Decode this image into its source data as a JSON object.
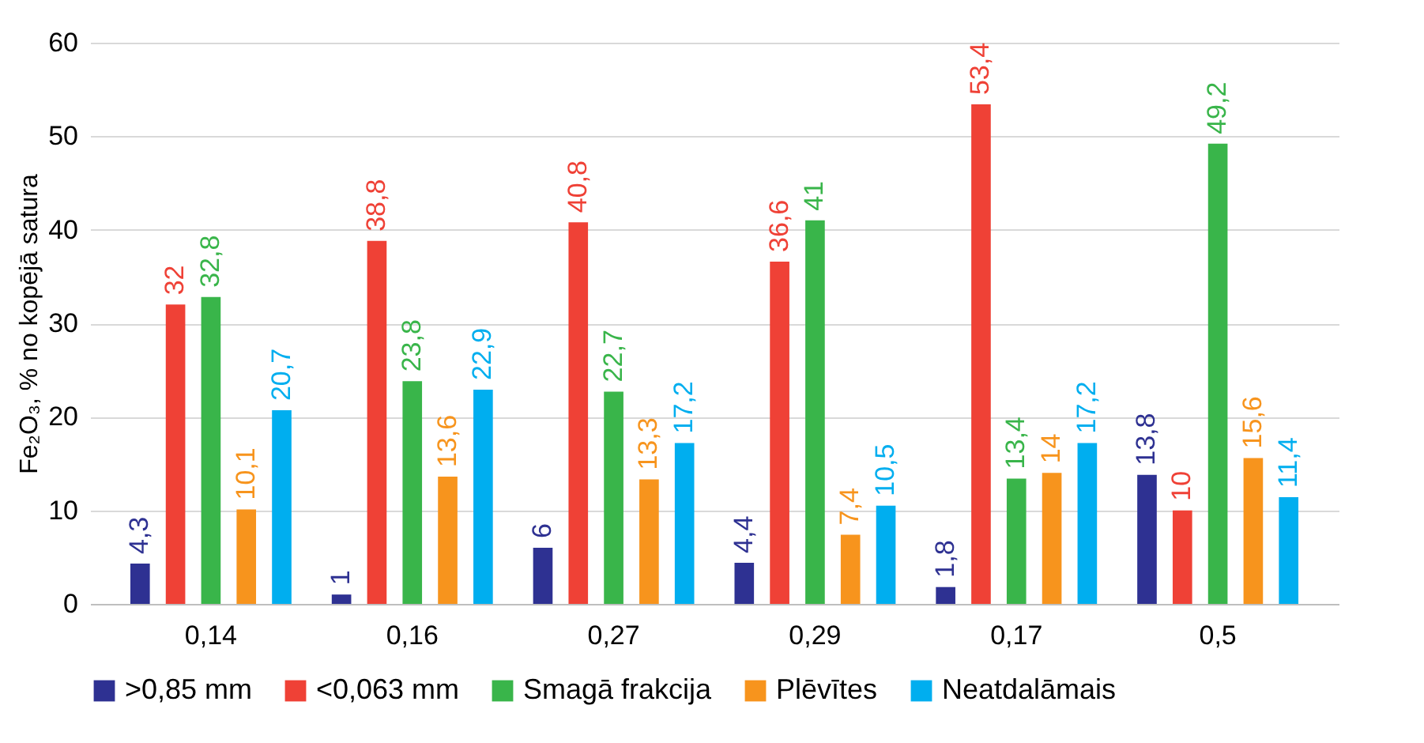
{
  "chart_data": {
    "type": "bar",
    "ylabel": "Fe₂O₃, % no kopējā satura",
    "categories": [
      "0,14",
      "0,16",
      "0,27",
      "0,29",
      "0,17",
      "0,5"
    ],
    "series": [
      {
        "name": ">0,85 mm",
        "color": "#2e3192",
        "values": [
          4.3,
          1,
          6,
          4.4,
          1.8,
          13.8
        ],
        "value_labels": [
          "4,3",
          "1",
          "6",
          "4,4",
          "1,8",
          "13,8"
        ]
      },
      {
        "name": "<0,063 mm",
        "color": "#ef4136",
        "values": [
          32,
          38.8,
          40.8,
          36.6,
          53.4,
          10
        ],
        "value_labels": [
          "32",
          "38,8",
          "40,8",
          "36,6",
          "53,4",
          "10"
        ]
      },
      {
        "name": "Smagā frakcija",
        "color": "#39b54a",
        "values": [
          32.8,
          23.8,
          22.7,
          41,
          13.4,
          49.2
        ],
        "value_labels": [
          "32,8",
          "23,8",
          "22,7",
          "41",
          "13,4",
          "49,2"
        ]
      },
      {
        "name": "Plēvītes",
        "color": "#f7941d",
        "values": [
          10.1,
          13.6,
          13.3,
          7.4,
          14,
          15.6
        ],
        "value_labels": [
          "10,1",
          "13,6",
          "13,3",
          "7,4",
          "14",
          "15,6"
        ]
      },
      {
        "name": "Neatdalāmais",
        "color": "#00aeef",
        "values": [
          20.7,
          22.9,
          17.2,
          10.5,
          17.2,
          11.4
        ],
        "value_labels": [
          "20,7",
          "22,9",
          "17,2",
          "10,5",
          "17,2",
          "11,4"
        ]
      }
    ],
    "ylim": [
      0,
      60
    ],
    "yticks": [
      0,
      10,
      20,
      30,
      40,
      50,
      60
    ],
    "grid": "y",
    "legend": "bottom"
  }
}
